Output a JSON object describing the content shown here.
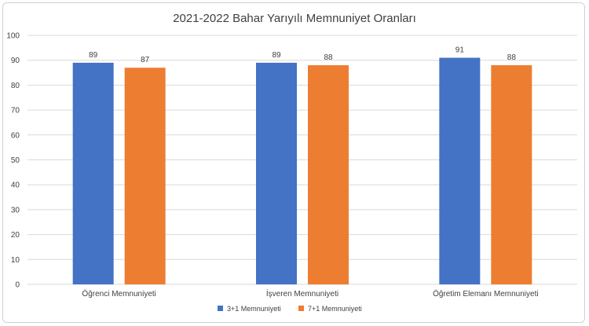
{
  "chart_data": {
    "type": "bar",
    "title": "2021-2022 Bahar Yarıyılı Memnuniyet Oranları",
    "categories": [
      "Öğrenci Memnuniyeti",
      "İşveren Memnuniyeti",
      "Öğretim Elemanı Memnuniyeti"
    ],
    "series": [
      {
        "name": "3+1 Memnuniyeti",
        "values": [
          89,
          89,
          91
        ],
        "color": "#4472C4"
      },
      {
        "name": "7+1 Memnuniyeti",
        "values": [
          87,
          88,
          88
        ],
        "color": "#ED7D31"
      }
    ],
    "ylim": [
      0,
      100
    ],
    "yticks": [
      0,
      10,
      20,
      30,
      40,
      50,
      60,
      70,
      80,
      90,
      100
    ],
    "grid": true,
    "legend_position": "bottom",
    "data_labels": true
  }
}
